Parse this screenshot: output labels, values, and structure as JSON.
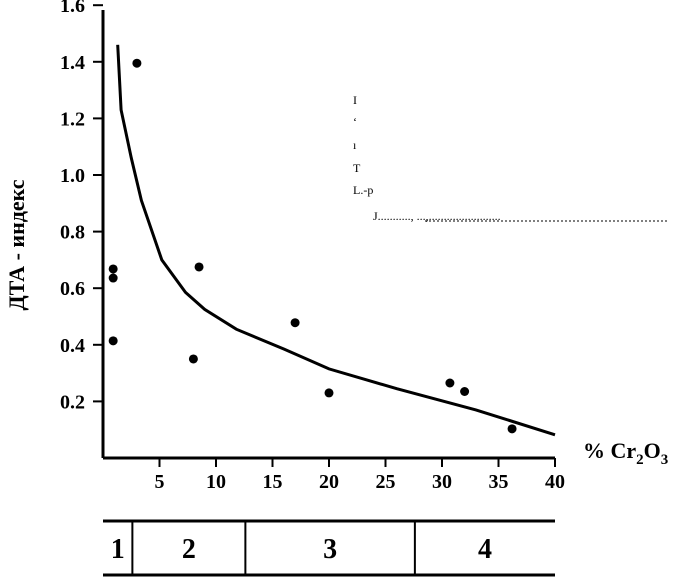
{
  "chart_data": {
    "type": "scatter",
    "xlabel": {
      "prefix": "% Cr",
      "sub1": "2",
      "mid": "O",
      "sub2": "3"
    },
    "ylabel": "ДТА - индекс",
    "xlim": [
      0,
      40
    ],
    "ylim": [
      0,
      1.6
    ],
    "xticks": [
      "5",
      "10",
      "15",
      "20",
      "25",
      "30",
      "35",
      "40"
    ],
    "yticks": [
      "0.2",
      "0.4",
      "0.6",
      "0.8",
      "1.0",
      "1.2",
      "1.4",
      "1.6"
    ],
    "grid": false,
    "points": [
      {
        "x": 3.0,
        "y": 1.395
      },
      {
        "x": 0.9,
        "y": 0.668
      },
      {
        "x": 0.9,
        "y": 0.636
      },
      {
        "x": 0.9,
        "y": 0.414
      },
      {
        "x": 8.5,
        "y": 0.675
      },
      {
        "x": 8.0,
        "y": 0.35
      },
      {
        "x": 17.0,
        "y": 0.478
      },
      {
        "x": 20.0,
        "y": 0.23
      },
      {
        "x": 30.7,
        "y": 0.265
      },
      {
        "x": 32.0,
        "y": 0.235
      },
      {
        "x": 36.2,
        "y": 0.103
      }
    ],
    "trend_line": [
      {
        "x": 1.3,
        "y": 1.46
      },
      {
        "x": 1.6,
        "y": 1.23
      },
      {
        "x": 2.5,
        "y": 1.06
      },
      {
        "x": 3.4,
        "y": 0.91
      },
      {
        "x": 5.2,
        "y": 0.7
      },
      {
        "x": 7.3,
        "y": 0.585
      },
      {
        "x": 9.0,
        "y": 0.525
      },
      {
        "x": 11.8,
        "y": 0.455
      },
      {
        "x": 16.0,
        "y": 0.385
      },
      {
        "x": 20.0,
        "y": 0.315
      },
      {
        "x": 26.0,
        "y": 0.245
      },
      {
        "x": 33.0,
        "y": 0.17
      },
      {
        "x": 40.0,
        "y": 0.082
      }
    ],
    "zones": [
      {
        "label": "1",
        "from": 0,
        "to": 2.6
      },
      {
        "label": "2",
        "from": 2.6,
        "to": 12.6
      },
      {
        "label": "3",
        "from": 12.6,
        "to": 27.6
      },
      {
        "label": "4",
        "from": 27.6,
        "to": 40
      }
    ],
    "legend_fragments": [
      "I",
      "‘",
      "ı",
      "T",
      "L.-p",
      "J..........., ...,........................"
    ]
  }
}
